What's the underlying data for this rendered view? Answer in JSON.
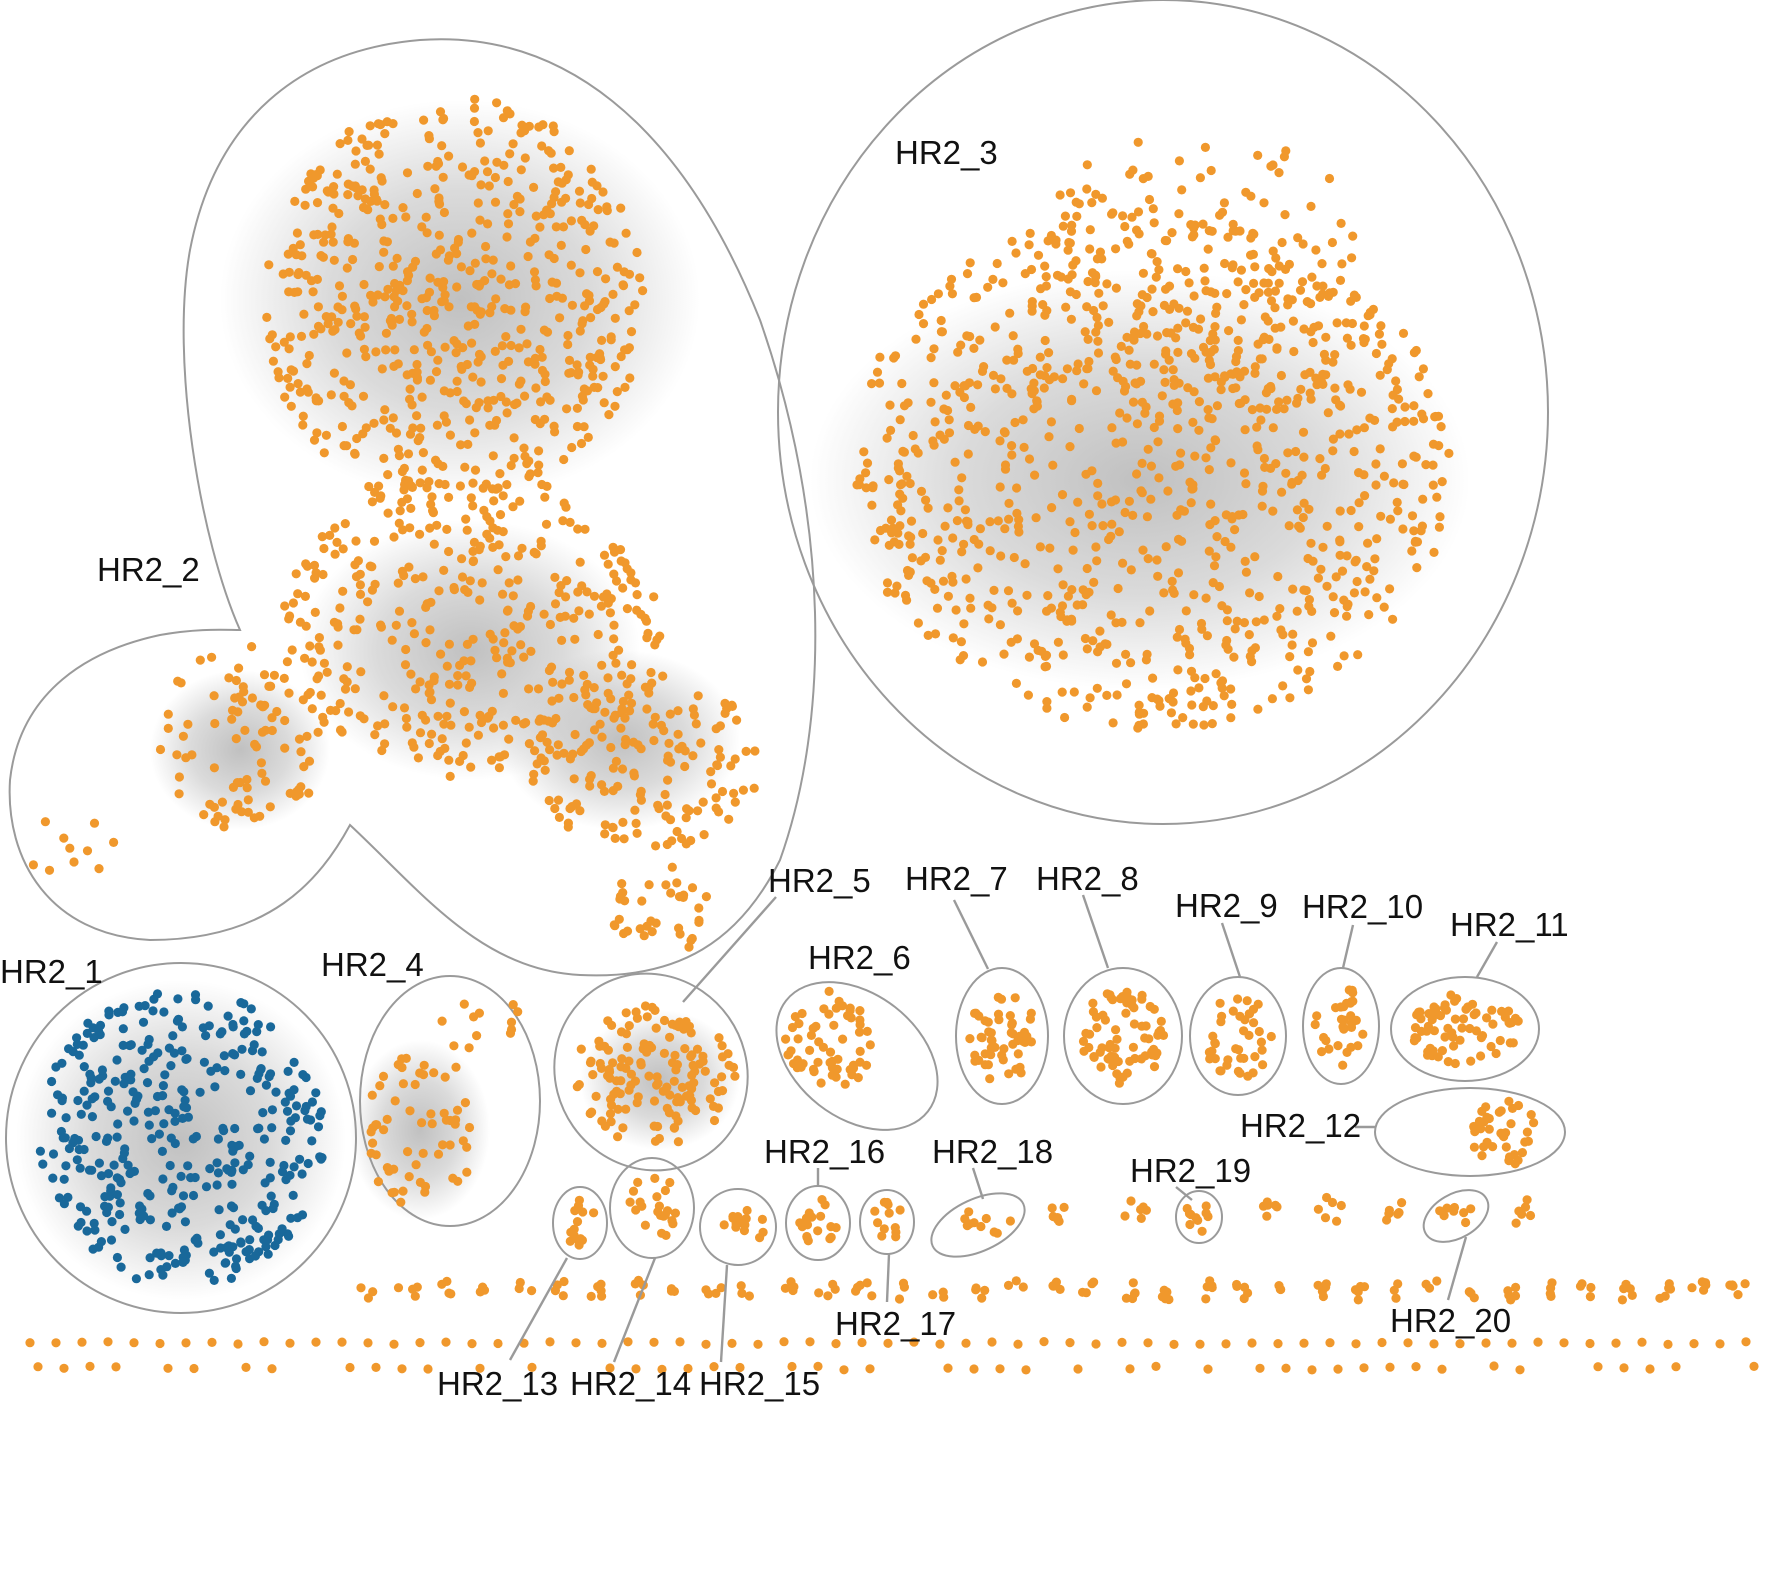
{
  "colors": {
    "node_default": "#f0982c",
    "node_highlight": "#19689a",
    "edge": "#bdbdbd",
    "outline": "#9a9a9a",
    "label": "#111111"
  },
  "clusters": [
    {
      "id": "hr2_1",
      "label": "HR2_1",
      "node_color": "highlight"
    },
    {
      "id": "hr2_2",
      "label": "HR2_2",
      "node_color": "default"
    },
    {
      "id": "hr2_3",
      "label": "HR2_3",
      "node_color": "default"
    },
    {
      "id": "hr2_4",
      "label": "HR2_4",
      "node_color": "default"
    },
    {
      "id": "hr2_5",
      "label": "HR2_5",
      "node_color": "default"
    },
    {
      "id": "hr2_6",
      "label": "HR2_6",
      "node_color": "default"
    },
    {
      "id": "hr2_7",
      "label": "HR2_7",
      "node_color": "default"
    },
    {
      "id": "hr2_8",
      "label": "HR2_8",
      "node_color": "default"
    },
    {
      "id": "hr2_9",
      "label": "HR2_9",
      "node_color": "default"
    },
    {
      "id": "hr2_10",
      "label": "HR2_10",
      "node_color": "default"
    },
    {
      "id": "hr2_11",
      "label": "HR2_11",
      "node_color": "default"
    },
    {
      "id": "hr2_12",
      "label": "HR2_12",
      "node_color": "default"
    },
    {
      "id": "hr2_13",
      "label": "HR2_13",
      "node_color": "default"
    },
    {
      "id": "hr2_14",
      "label": "HR2_14",
      "node_color": "default"
    },
    {
      "id": "hr2_15",
      "label": "HR2_15",
      "node_color": "default"
    },
    {
      "id": "hr2_16",
      "label": "HR2_16",
      "node_color": "default"
    },
    {
      "id": "hr2_17",
      "label": "HR2_17",
      "node_color": "default"
    },
    {
      "id": "hr2_18",
      "label": "HR2_18",
      "node_color": "default"
    },
    {
      "id": "hr2_19",
      "label": "HR2_19",
      "node_color": "default"
    },
    {
      "id": "hr2_20",
      "label": "HR2_20",
      "node_color": "default"
    }
  ]
}
